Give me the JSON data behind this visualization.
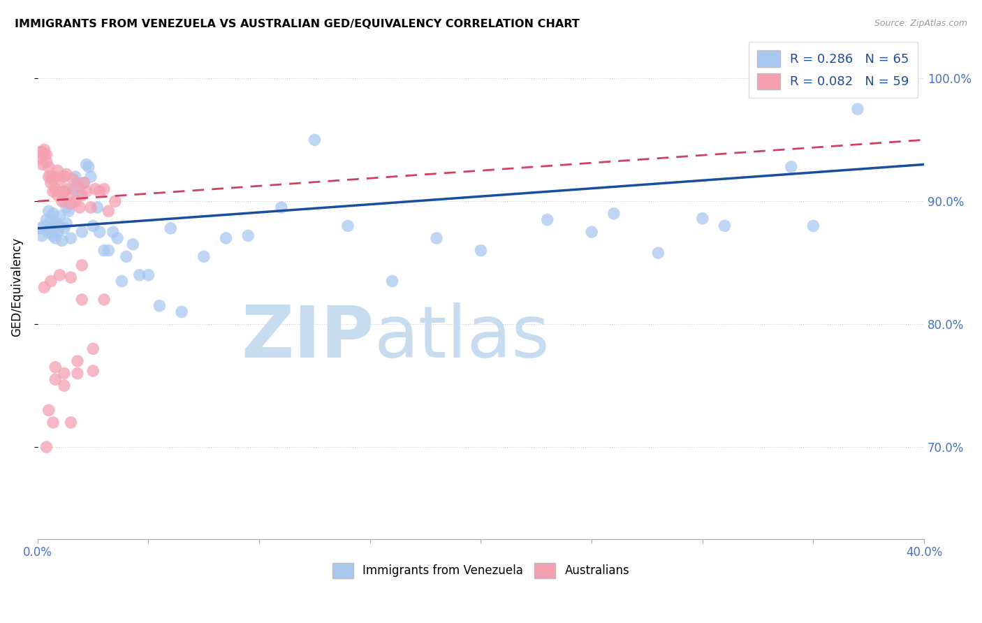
{
  "title": "IMMIGRANTS FROM VENEZUELA VS AUSTRALIAN GED/EQUIVALENCY CORRELATION CHART",
  "source": "Source: ZipAtlas.com",
  "ylabel": "GED/Equivalency",
  "ytick_labels": [
    "100.0%",
    "90.0%",
    "80.0%",
    "70.0%"
  ],
  "ytick_values": [
    1.0,
    0.9,
    0.8,
    0.7
  ],
  "legend_blue_r": "R = 0.286",
  "legend_blue_n": "N = 65",
  "legend_pink_r": "R = 0.082",
  "legend_pink_n": "N = 59",
  "legend_label_blue": "Immigrants from Venezuela",
  "legend_label_pink": "Australians",
  "blue_color": "#A8C8F0",
  "pink_color": "#F4A0B0",
  "trend_blue_color": "#1A4FA0",
  "trend_pink_color": "#D04060",
  "watermark_zip_color": "#C8DCF0",
  "watermark_atlas_color": "#C8DCF0",
  "background_color": "#FFFFFF",
  "x_min": 0.0,
  "x_max": 0.4,
  "y_min": 0.625,
  "y_max": 1.035,
  "blue_x": [
    0.001,
    0.002,
    0.003,
    0.004,
    0.005,
    0.005,
    0.006,
    0.006,
    0.007,
    0.007,
    0.008,
    0.008,
    0.009,
    0.009,
    0.01,
    0.01,
    0.011,
    0.012,
    0.012,
    0.013,
    0.013,
    0.014,
    0.015,
    0.016,
    0.017,
    0.018,
    0.019,
    0.02,
    0.021,
    0.022,
    0.023,
    0.024,
    0.025,
    0.027,
    0.028,
    0.03,
    0.032,
    0.034,
    0.036,
    0.038,
    0.04,
    0.043,
    0.046,
    0.05,
    0.055,
    0.06,
    0.065,
    0.075,
    0.085,
    0.095,
    0.11,
    0.125,
    0.14,
    0.16,
    0.18,
    0.2,
    0.23,
    0.26,
    0.3,
    0.34,
    0.37,
    0.35,
    0.31,
    0.28,
    0.25
  ],
  "blue_y": [
    0.878,
    0.872,
    0.88,
    0.885,
    0.875,
    0.892,
    0.885,
    0.878,
    0.89,
    0.872,
    0.88,
    0.87,
    0.875,
    0.882,
    0.88,
    0.888,
    0.868,
    0.9,
    0.878,
    0.882,
    0.895,
    0.892,
    0.87,
    0.91,
    0.92,
    0.915,
    0.905,
    0.875,
    0.915,
    0.93,
    0.928,
    0.92,
    0.88,
    0.895,
    0.875,
    0.86,
    0.86,
    0.875,
    0.87,
    0.835,
    0.855,
    0.865,
    0.84,
    0.84,
    0.815,
    0.878,
    0.81,
    0.855,
    0.87,
    0.872,
    0.895,
    0.95,
    0.88,
    0.835,
    0.87,
    0.86,
    0.885,
    0.89,
    0.886,
    0.928,
    0.975,
    0.88,
    0.88,
    0.858,
    0.875
  ],
  "pink_x": [
    0.001,
    0.001,
    0.002,
    0.002,
    0.003,
    0.003,
    0.004,
    0.004,
    0.005,
    0.005,
    0.006,
    0.006,
    0.007,
    0.007,
    0.008,
    0.008,
    0.009,
    0.009,
    0.01,
    0.01,
    0.011,
    0.012,
    0.012,
    0.013,
    0.013,
    0.014,
    0.015,
    0.016,
    0.017,
    0.018,
    0.019,
    0.02,
    0.021,
    0.022,
    0.024,
    0.026,
    0.028,
    0.03,
    0.032,
    0.035,
    0.012,
    0.018,
    0.025,
    0.005,
    0.008,
    0.003,
    0.006,
    0.01,
    0.015,
    0.02,
    0.004,
    0.007,
    0.012,
    0.018,
    0.025,
    0.03,
    0.02,
    0.015,
    0.008
  ],
  "pink_y": [
    0.94,
    0.935,
    0.94,
    0.93,
    0.938,
    0.942,
    0.932,
    0.938,
    0.92,
    0.928,
    0.915,
    0.92,
    0.908,
    0.918,
    0.91,
    0.92,
    0.905,
    0.925,
    0.908,
    0.918,
    0.9,
    0.908,
    0.92,
    0.91,
    0.922,
    0.905,
    0.898,
    0.918,
    0.9,
    0.912,
    0.895,
    0.905,
    0.915,
    0.908,
    0.895,
    0.91,
    0.908,
    0.91,
    0.892,
    0.9,
    0.76,
    0.77,
    0.78,
    0.73,
    0.755,
    0.83,
    0.835,
    0.84,
    0.838,
    0.848,
    0.7,
    0.72,
    0.75,
    0.76,
    0.762,
    0.82,
    0.82,
    0.72,
    0.765
  ]
}
